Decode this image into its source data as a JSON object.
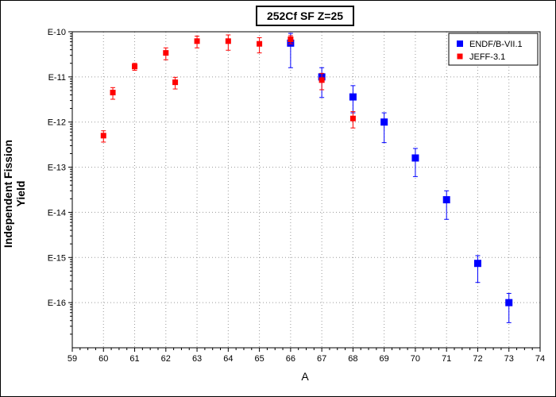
{
  "chart_data": {
    "type": "scatter",
    "title": "252Cf SF Z=25",
    "xlabel": "A",
    "ylabel": "Independent Fission Yield",
    "xlim": [
      59,
      74
    ],
    "ylim": [
      1e-17,
      1e-10
    ],
    "yscale": "log",
    "x_ticks": [
      "59",
      "60",
      "61",
      "62",
      "63",
      "64",
      "65",
      "66",
      "67",
      "68",
      "69",
      "70",
      "71",
      "72",
      "73",
      "74"
    ],
    "y_ticks": [
      "E-10",
      "E-11",
      "E-12",
      "E-13",
      "E-14",
      "E-15",
      "E-16"
    ],
    "grid": true,
    "legend_position": "top-right",
    "series": [
      {
        "name": "ENDF/B-VII.1",
        "color": "#0000ff",
        "points": [
          {
            "x": 66,
            "y": 5.6e-11,
            "ylow": 1.6e-11,
            "yhigh": 9.2e-11
          },
          {
            "x": 67,
            "y": 1e-11,
            "ylow": 3.5e-12,
            "yhigh": 1.6e-11
          },
          {
            "x": 68,
            "y": 3.6e-12,
            "ylow": 1.6e-12,
            "yhigh": 6.4e-12
          },
          {
            "x": 69,
            "y": 1e-12,
            "ylow": 3.5e-13,
            "yhigh": 1.6e-12
          },
          {
            "x": 70,
            "y": 1.6e-13,
            "ylow": 6.2e-14,
            "yhigh": 2.6e-13
          },
          {
            "x": 71,
            "y": 1.9e-14,
            "ylow": 7e-15,
            "yhigh": 3e-14
          },
          {
            "x": 72,
            "y": 7.4e-16,
            "ylow": 2.8e-16,
            "yhigh": 1.1e-15
          },
          {
            "x": 73,
            "y": 1e-16,
            "ylow": 3.6e-17,
            "yhigh": 1.6e-16
          }
        ]
      },
      {
        "name": "JEFF-3.1",
        "color": "#ff0000",
        "points": [
          {
            "x": 60.0,
            "y": 5e-13,
            "ylow": 3.6e-13,
            "yhigh": 6.4e-13
          },
          {
            "x": 60.3,
            "y": 4.5e-12,
            "ylow": 3.2e-12,
            "yhigh": 5.8e-12
          },
          {
            "x": 61.0,
            "y": 1.7e-11,
            "ylow": 1.4e-11,
            "yhigh": 2e-11
          },
          {
            "x": 62.0,
            "y": 3.4e-11,
            "ylow": 2.4e-11,
            "yhigh": 4.4e-11
          },
          {
            "x": 62.3,
            "y": 7.6e-12,
            "ylow": 5.4e-12,
            "yhigh": 9.8e-12
          },
          {
            "x": 63.0,
            "y": 6.2e-11,
            "ylow": 4.4e-11,
            "yhigh": 8e-11
          },
          {
            "x": 64.0,
            "y": 6.2e-11,
            "ylow": 3.9e-11,
            "yhigh": 8.5e-11
          },
          {
            "x": 65.0,
            "y": 5.4e-11,
            "ylow": 3.4e-11,
            "yhigh": 7.4e-11
          },
          {
            "x": 66.0,
            "y": 6.8e-11,
            "ylow": 5.4e-11,
            "yhigh": 8.2e-11
          },
          {
            "x": 67.0,
            "y": 8.5e-12,
            "ylow": 5.2e-12,
            "yhigh": 1.2e-11
          },
          {
            "x": 68.0,
            "y": 1.2e-12,
            "ylow": 7.4e-13,
            "yhigh": 1.7e-12
          }
        ]
      }
    ]
  }
}
